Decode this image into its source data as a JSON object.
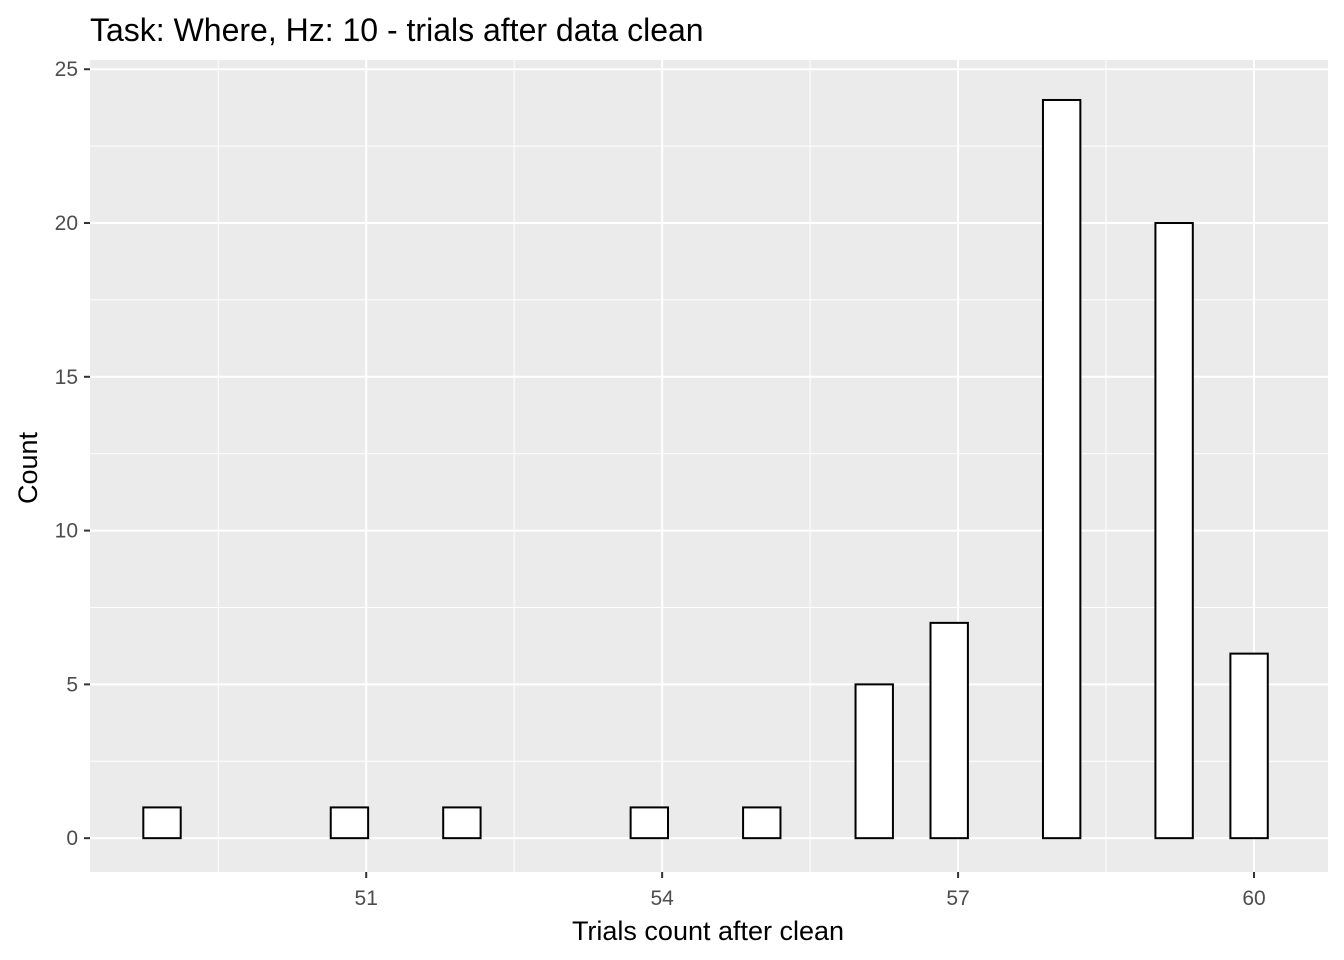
{
  "chart_data": {
    "type": "bar",
    "title": "Task: Where, Hz: 10 - trials after data clean",
    "xlabel": "Trials count after clean",
    "ylabel": "Count",
    "xlim": [
      48.2,
      60.75
    ],
    "ylim": [
      -1.1,
      25.3
    ],
    "x_ticks": [
      51,
      54,
      57,
      60
    ],
    "y_ticks": [
      0,
      5,
      10,
      15,
      20,
      25
    ],
    "bin_width": 0.379,
    "bars": [
      {
        "x": 48.93,
        "count": 1
      },
      {
        "x": 49.31,
        "count": 0
      },
      {
        "x": 49.69,
        "count": 0
      },
      {
        "x": 50.07,
        "count": 0
      },
      {
        "x": 50.45,
        "count": 0
      },
      {
        "x": 50.83,
        "count": 1
      },
      {
        "x": 51.21,
        "count": 0
      },
      {
        "x": 51.59,
        "count": 0
      },
      {
        "x": 51.97,
        "count": 1
      },
      {
        "x": 52.35,
        "count": 0
      },
      {
        "x": 52.73,
        "count": 0
      },
      {
        "x": 53.11,
        "count": 0
      },
      {
        "x": 53.49,
        "count": 0
      },
      {
        "x": 53.87,
        "count": 1
      },
      {
        "x": 54.25,
        "count": 0
      },
      {
        "x": 54.63,
        "count": 0
      },
      {
        "x": 55.01,
        "count": 1
      },
      {
        "x": 55.39,
        "count": 0
      },
      {
        "x": 55.77,
        "count": 0
      },
      {
        "x": 56.15,
        "count": 5
      },
      {
        "x": 56.53,
        "count": 0
      },
      {
        "x": 56.91,
        "count": 7
      },
      {
        "x": 57.29,
        "count": 0
      },
      {
        "x": 57.67,
        "count": 0
      },
      {
        "x": 58.05,
        "count": 24
      },
      {
        "x": 58.43,
        "count": 0
      },
      {
        "x": 58.81,
        "count": 0
      },
      {
        "x": 59.19,
        "count": 20
      },
      {
        "x": 59.57,
        "count": 0
      },
      {
        "x": 59.95,
        "count": 6
      }
    ],
    "grid": true,
    "colors": {
      "panel_background": "#ebebeb",
      "grid_line": "#ffffff",
      "bar_fill": "#ffffff",
      "bar_outline": "#000000",
      "tick_label": "#4d4d4d"
    }
  }
}
